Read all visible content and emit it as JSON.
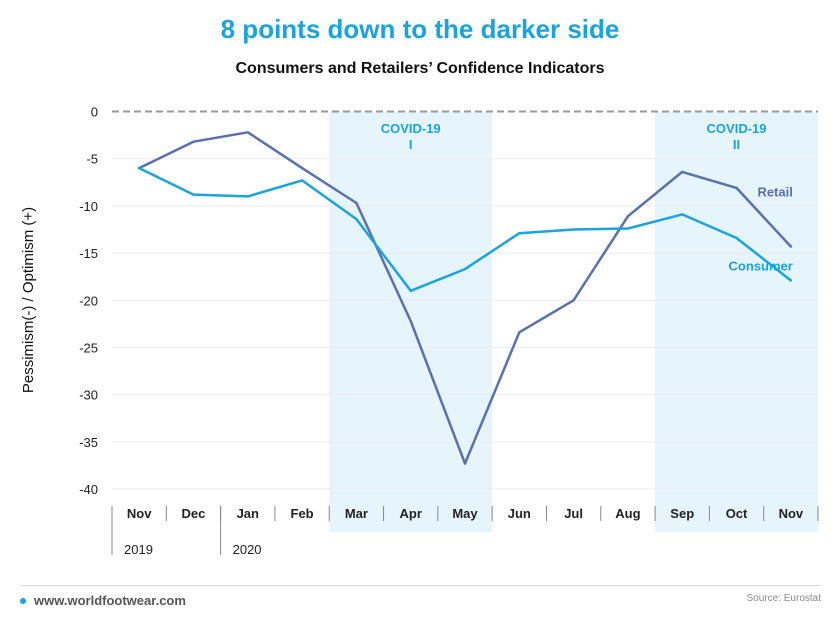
{
  "header": {
    "title": "8 points down to the darker side",
    "subtitle": "Consumers and Retailers’ Confidence Indicators"
  },
  "footer": {
    "site": "www.worldfootwear.com",
    "source": "Source: Eurostat"
  },
  "colors": {
    "title": "#1aa3dc",
    "consumer": "#1aa3dc",
    "retail": "#5b70ad",
    "covid_band": "#e6f4fc",
    "covid_label": "#1aa3dc"
  },
  "chart_data": {
    "type": "line",
    "title": "Consumers and Retailers’ Confidence Indicators",
    "ylabel": "Pessimism(-) / Optimism (+)",
    "xlabel": "",
    "categories": [
      "Nov",
      "Dec",
      "Jan",
      "Feb",
      "Mar",
      "Apr",
      "May",
      "Jun",
      "Jul",
      "Aug",
      "Sep",
      "Oct",
      "Nov"
    ],
    "year_labels": [
      {
        "label": "2019",
        "start_index": 0
      },
      {
        "label": "2020",
        "start_index": 2
      }
    ],
    "ylim": [
      -40,
      0
    ],
    "yticks": [
      0,
      -5,
      -10,
      -15,
      -20,
      -25,
      -30,
      -35,
      -40
    ],
    "grid": true,
    "series": [
      {
        "name": "Retail",
        "color": "#5b70ad",
        "values": [
          -6.0,
          -3.2,
          -2.2,
          -6.0,
          -9.7,
          -22.2,
          -37.3,
          -23.4,
          -20.0,
          -11.1,
          -6.4,
          -8.1,
          -14.3
        ]
      },
      {
        "name": "Consumer",
        "color": "#1aa3dc",
        "values": [
          -6.0,
          -8.8,
          -9.0,
          -7.3,
          -11.4,
          -19.0,
          -16.7,
          -12.9,
          -12.5,
          -12.4,
          -10.9,
          -13.4,
          -17.9
        ]
      }
    ],
    "annotations": [
      {
        "label_lines": [
          "COVID-19",
          "I"
        ],
        "from_index": 4,
        "to_index": 6
      },
      {
        "label_lines": [
          "COVID-19",
          "II"
        ],
        "from_index": 10,
        "to_index": 12
      }
    ]
  }
}
